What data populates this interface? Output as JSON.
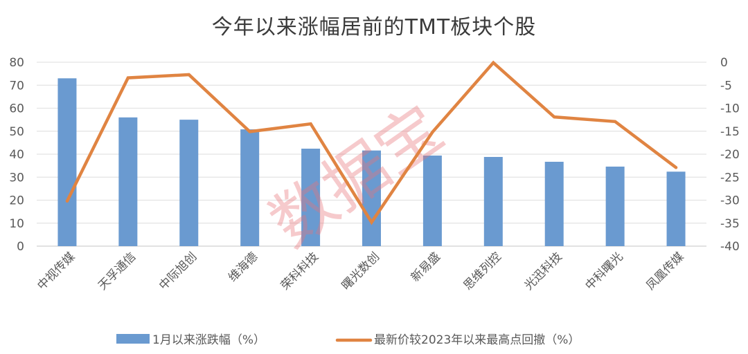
{
  "title": "今年以来涨幅居前的TMT板块个股",
  "watermark": "数据宝",
  "colors": {
    "bar": "#6a9ad0",
    "line": "#e08442",
    "grid": "#e3e3e3",
    "watermark": "#e8737a"
  },
  "legend": [
    {
      "label": "1月以来涨跌幅（%）",
      "type": "bar"
    },
    {
      "label": "最新价较2023年以来最高点回撤（%）",
      "type": "line"
    }
  ],
  "left_axis": {
    "ticks": [
      "80",
      "70",
      "60",
      "50",
      "40",
      "30",
      "20",
      "10",
      "0"
    ]
  },
  "right_axis": {
    "ticks": [
      "0",
      "-5",
      "-10",
      "-15",
      "-20",
      "-25",
      "-30",
      "-35",
      "-40"
    ]
  },
  "chart_data": {
    "type": "bar",
    "title": "今年以来涨幅居前的TMT板块个股",
    "categories": [
      "中视传媒",
      "天孚通信",
      "中际旭创",
      "维海德",
      "荣科科技",
      "曙光数创",
      "新易盛",
      "思维列控",
      "光迅科技",
      "中科曙光",
      "凤凰传媒"
    ],
    "series": [
      {
        "name": "1月以来涨跌幅（%）",
        "type": "bar",
        "axis": "left",
        "values": [
          73.0,
          56.0,
          55.0,
          50.8,
          42.4,
          41.6,
          39.4,
          38.8,
          36.7,
          34.6,
          32.4
        ]
      },
      {
        "name": "最新价较2023年以来最高点回撤（%）",
        "type": "line",
        "axis": "right",
        "values": [
          -30.2,
          -3.4,
          -2.7,
          -15.1,
          -13.4,
          -34.8,
          -15.2,
          -0.1,
          -11.9,
          -12.9,
          -22.9
        ]
      }
    ],
    "xlabel": "",
    "ylabel": "",
    "ylim": [
      0,
      80
    ],
    "y2lim": [
      -40,
      0
    ],
    "grid": true,
    "legend_position": "bottom"
  }
}
